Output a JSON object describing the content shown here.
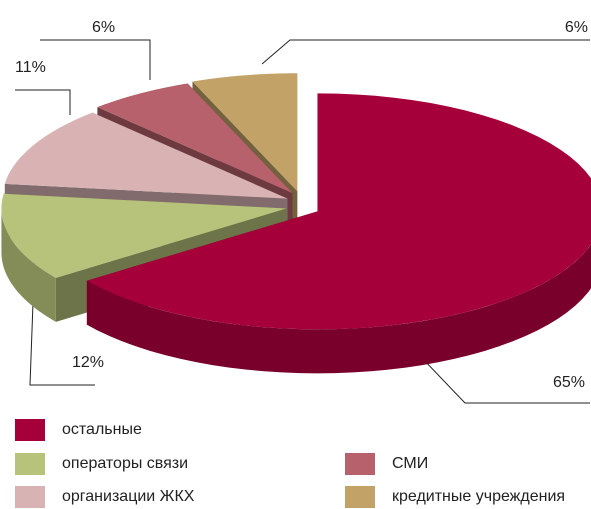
{
  "chart_data": {
    "type": "pie3d",
    "categories": [
      "остальные",
      "операторы связи",
      "организации ЖКХ",
      "СМИ",
      "кредитные учреждения"
    ],
    "values": [
      65,
      12,
      11,
      6,
      6
    ],
    "value_labels": [
      "65%",
      "12%",
      "11%",
      "6%",
      "6%"
    ],
    "colors": [
      "#a6003a",
      "#b7c27a",
      "#d9b2b4",
      "#b6616b",
      "#c2a266"
    ]
  }
}
